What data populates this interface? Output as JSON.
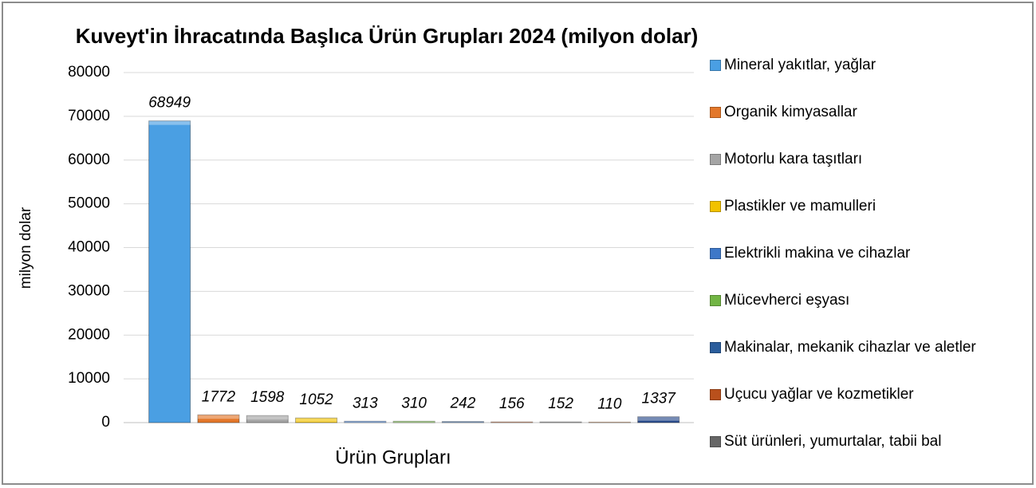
{
  "chart_data": {
    "type": "bar",
    "title": "Kuveyt'in İhracatında Başlıca Ürün Grupları 2024 (milyon dolar)",
    "x_label": "Ürün Grupları",
    "y_label": "milyon dolar",
    "ylim": [
      0,
      80000
    ],
    "yticks": [
      0,
      10000,
      20000,
      30000,
      40000,
      50000,
      60000,
      70000,
      80000
    ],
    "grid": true,
    "legend": "right",
    "series": [
      {
        "name": "Mineral yakıtlar, yağlar",
        "color": "#4a9fe3",
        "values": [
          68949
        ]
      },
      {
        "name": "Organik kimyasallar",
        "color": "#e3772a",
        "values": [
          1772
        ]
      },
      {
        "name": "Motorlu kara taşıtları",
        "color": "#a5a5a5",
        "values": [
          1598
        ]
      },
      {
        "name": "Plastikler ve mamulleri",
        "color": "#f2c200",
        "values": [
          1052
        ]
      },
      {
        "name": "Elektrikli makina ve cihazlar",
        "color": "#3f78c8",
        "values": [
          313
        ]
      },
      {
        "name": "Mücevherci eşyası",
        "color": "#72b544",
        "values": [
          310
        ]
      },
      {
        "name": "Makinalar, mekanik cihazlar ve aletler",
        "color": "#2a5d9c",
        "values": [
          242
        ]
      },
      {
        "name": "Uçucu yağlar ve kozmetikler",
        "color": "#b9501c",
        "values": [
          156
        ]
      },
      {
        "name": "Süt ürünleri, yumurtalar, tabii bal",
        "color": "#666666",
        "values": [
          152
        ]
      },
      {
        "name": null,
        "color": "#c8702a",
        "values": [
          110
        ]
      },
      {
        "name": null,
        "color": "#2c4d8e",
        "values": [
          1337
        ]
      }
    ]
  }
}
